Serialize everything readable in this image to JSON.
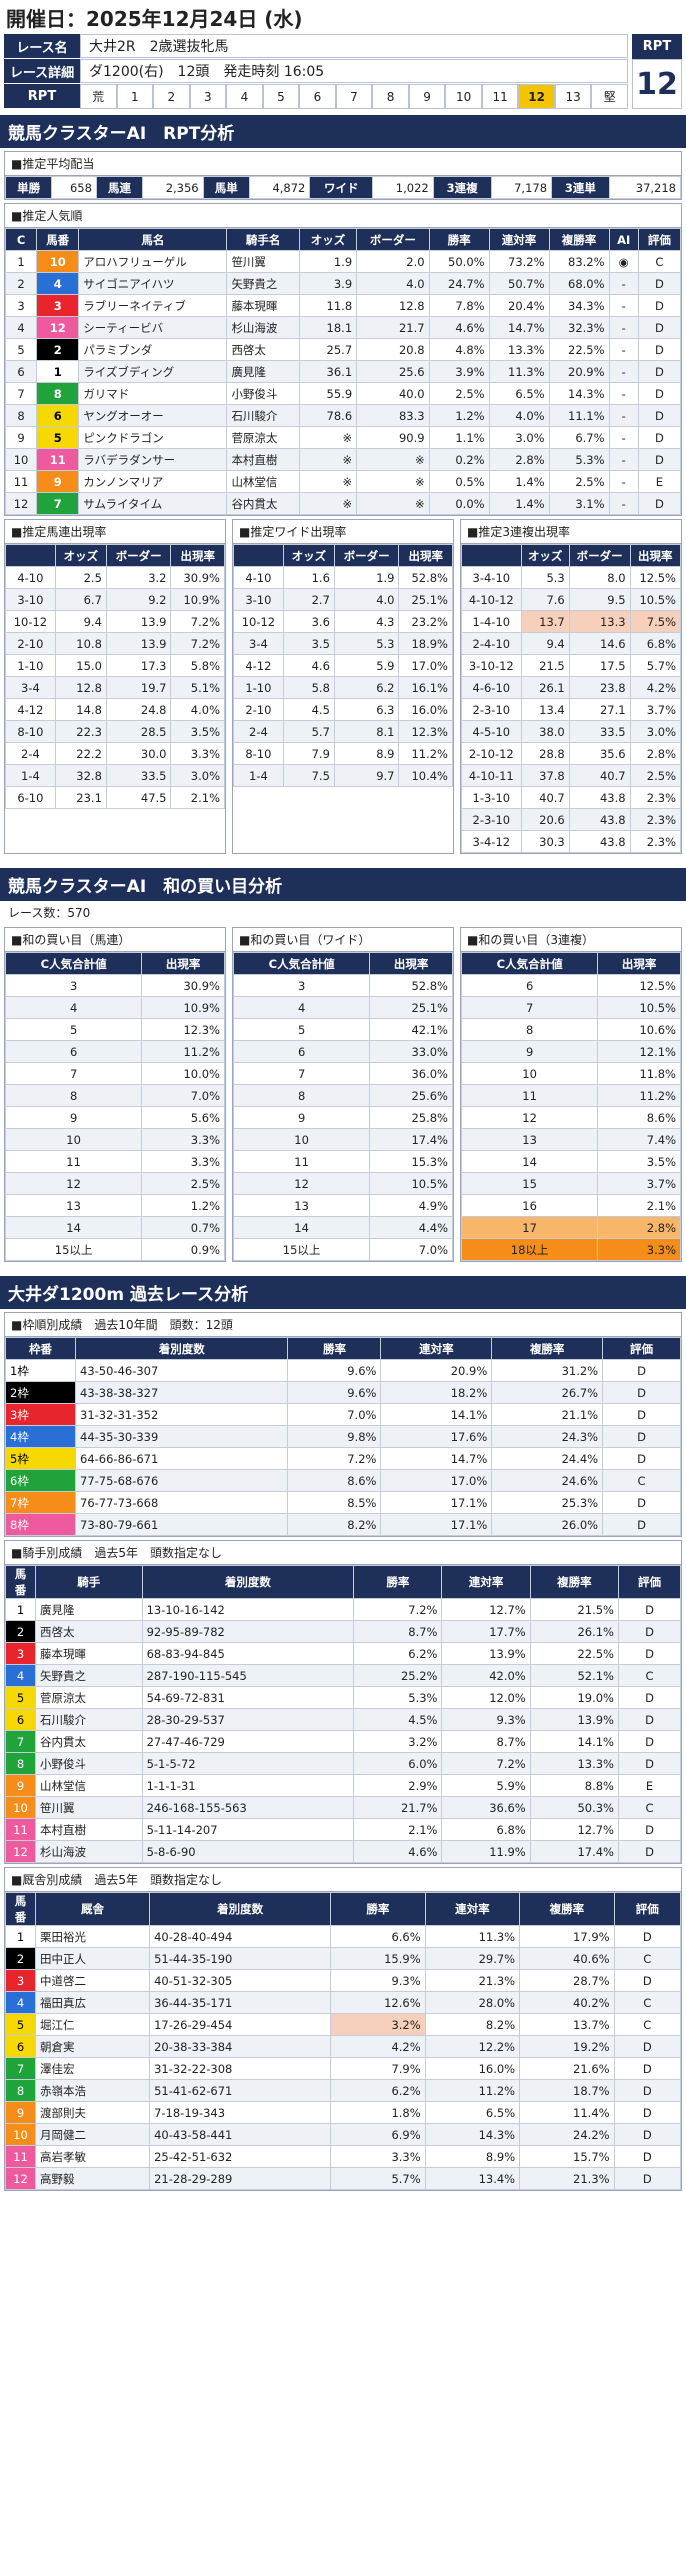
{
  "header": {
    "date_label": "開催日：",
    "date": "2025年12月24日 (水)"
  },
  "race": {
    "name_label": "レース名",
    "name": "大井2R　2歳選抜牝馬",
    "detail_label": "レース詳細",
    "detail": "ダ1200(右)　12頭　発走時刻 16:05",
    "rpt_label": "RPT",
    "rpt_head": "RPT",
    "rpt_value": "12",
    "rpt_scale": [
      "荒",
      "1",
      "2",
      "3",
      "4",
      "5",
      "6",
      "7",
      "8",
      "9",
      "10",
      "11",
      "12",
      "13",
      "堅"
    ],
    "rpt_selected": "12"
  },
  "sec1": {
    "title": "競馬クラスターAI　RPT分析"
  },
  "payout": {
    "title": "■推定平均配当",
    "items": [
      {
        "k": "単勝",
        "v": "658"
      },
      {
        "k": "馬連",
        "v": "2,356"
      },
      {
        "k": "馬単",
        "v": "4,872"
      },
      {
        "k": "ワイド",
        "v": "1,022"
      },
      {
        "k": "3連複",
        "v": "7,178"
      },
      {
        "k": "3連単",
        "v": "37,218"
      }
    ]
  },
  "pop": {
    "title": "■推定人気順",
    "headers": [
      "C",
      "馬番",
      "馬名",
      "騎手名",
      "オッズ",
      "ボーダー",
      "勝率",
      "連対率",
      "複勝率",
      "AI",
      "評価"
    ],
    "rows": [
      [
        "1",
        "10",
        "アロハフリューゲル",
        "笹川翼",
        "1.9",
        "2.0",
        "50.0%",
        "73.2%",
        "83.2%",
        "◉",
        "C"
      ],
      [
        "2",
        "4",
        "サイゴニアイハツ",
        "矢野貴之",
        "3.9",
        "4.0",
        "24.7%",
        "50.7%",
        "68.0%",
        "-",
        "D"
      ],
      [
        "3",
        "3",
        "ラブリーネイティブ",
        "藤本現暉",
        "11.8",
        "12.8",
        "7.8%",
        "20.4%",
        "34.3%",
        "-",
        "D"
      ],
      [
        "4",
        "12",
        "シーティービバ",
        "杉山海波",
        "18.1",
        "21.7",
        "4.6%",
        "14.7%",
        "32.3%",
        "-",
        "D"
      ],
      [
        "5",
        "2",
        "パラミブンダ",
        "西啓太",
        "25.7",
        "20.8",
        "4.8%",
        "13.3%",
        "22.5%",
        "-",
        "D"
      ],
      [
        "6",
        "1",
        "ライズブディング",
        "廣見隆",
        "36.1",
        "25.6",
        "3.9%",
        "11.3%",
        "20.9%",
        "-",
        "D"
      ],
      [
        "7",
        "8",
        "ガリマド",
        "小野俊斗",
        "55.9",
        "40.0",
        "2.5%",
        "6.5%",
        "14.3%",
        "-",
        "D"
      ],
      [
        "8",
        "6",
        "ヤングオーオー",
        "石川駿介",
        "78.6",
        "83.3",
        "1.2%",
        "4.0%",
        "11.1%",
        "-",
        "D"
      ],
      [
        "9",
        "5",
        "ピンクドラゴン",
        "菅原涼太",
        "※",
        "90.9",
        "1.1%",
        "3.0%",
        "6.7%",
        "-",
        "D"
      ],
      [
        "10",
        "11",
        "ラバデラダンサー",
        "本村直樹",
        "※",
        "※",
        "0.2%",
        "2.8%",
        "5.3%",
        "-",
        "D"
      ],
      [
        "11",
        "9",
        "カンノンマリア",
        "山林堂信",
        "※",
        "※",
        "0.5%",
        "1.4%",
        "2.5%",
        "-",
        "E"
      ],
      [
        "12",
        "7",
        "サムライタイム",
        "谷内貫太",
        "※",
        "※",
        "0.0%",
        "1.4%",
        "3.1%",
        "-",
        "D"
      ]
    ]
  },
  "umaren": {
    "title": "■推定馬連出現率",
    "headers": [
      "",
      "オッズ",
      "ボーダー",
      "出現率"
    ],
    "rows": [
      [
        "4-10",
        "2.5",
        "3.2",
        "30.9%"
      ],
      [
        "3-10",
        "6.7",
        "9.2",
        "10.9%"
      ],
      [
        "10-12",
        "9.4",
        "13.9",
        "7.2%"
      ],
      [
        "2-10",
        "10.8",
        "13.9",
        "7.2%"
      ],
      [
        "1-10",
        "15.0",
        "17.3",
        "5.8%"
      ],
      [
        "3-4",
        "12.8",
        "19.7",
        "5.1%"
      ],
      [
        "4-12",
        "14.8",
        "24.8",
        "4.0%"
      ],
      [
        "8-10",
        "22.3",
        "28.5",
        "3.5%"
      ],
      [
        "2-4",
        "22.2",
        "30.0",
        "3.3%"
      ],
      [
        "1-4",
        "32.8",
        "33.5",
        "3.0%"
      ],
      [
        "6-10",
        "23.1",
        "47.5",
        "2.1%"
      ]
    ]
  },
  "wide": {
    "title": "■推定ワイド出現率",
    "headers": [
      "",
      "オッズ",
      "ボーダー",
      "出現率"
    ],
    "rows": [
      [
        "4-10",
        "1.6",
        "1.9",
        "52.8%"
      ],
      [
        "3-10",
        "2.7",
        "4.0",
        "25.1%"
      ],
      [
        "10-12",
        "3.6",
        "4.3",
        "23.2%"
      ],
      [
        "3-4",
        "3.5",
        "5.3",
        "18.9%"
      ],
      [
        "4-12",
        "4.6",
        "5.9",
        "17.0%"
      ],
      [
        "1-10",
        "5.8",
        "6.2",
        "16.1%"
      ],
      [
        "2-10",
        "4.5",
        "6.3",
        "16.0%"
      ],
      [
        "2-4",
        "5.7",
        "8.1",
        "12.3%"
      ],
      [
        "8-10",
        "7.9",
        "8.9",
        "11.2%"
      ],
      [
        "1-4",
        "7.5",
        "9.7",
        "10.4%"
      ]
    ]
  },
  "sanren": {
    "title": "■推定3連複出現率",
    "headers": [
      "",
      "オッズ",
      "ボーダー",
      "出現率"
    ],
    "rows": [
      [
        "3-4-10",
        "5.3",
        "8.0",
        "12.5%"
      ],
      [
        "4-10-12",
        "7.6",
        "9.5",
        "10.5%"
      ],
      [
        "1-4-10",
        "13.7",
        "13.3",
        "7.5%"
      ],
      [
        "2-4-10",
        "9.4",
        "14.6",
        "6.8%"
      ],
      [
        "3-10-12",
        "21.5",
        "17.5",
        "5.7%"
      ],
      [
        "4-6-10",
        "26.1",
        "23.8",
        "4.2%"
      ],
      [
        "2-3-10",
        "13.4",
        "27.1",
        "3.7%"
      ],
      [
        "4-5-10",
        "38.0",
        "33.5",
        "3.0%"
      ],
      [
        "2-10-12",
        "28.8",
        "35.6",
        "2.8%"
      ],
      [
        "4-10-11",
        "37.8",
        "40.7",
        "2.5%"
      ],
      [
        "1-3-10",
        "40.7",
        "43.8",
        "2.3%"
      ],
      [
        "2-3-10",
        "20.6",
        "43.8",
        "2.3%"
      ],
      [
        "3-4-12",
        "30.3",
        "43.8",
        "2.3%"
      ]
    ],
    "marked": [
      2,
      5,
      7
    ]
  },
  "sec2": {
    "title": "競馬クラスターAI　和の買い目分析",
    "races": "レース数：570"
  },
  "wa1": {
    "title": "■和の買い目（馬連）",
    "headers": [
      "C人気合計値",
      "出現率"
    ],
    "rows": [
      [
        "3",
        "30.9%"
      ],
      [
        "4",
        "10.9%"
      ],
      [
        "5",
        "12.3%"
      ],
      [
        "6",
        "11.2%"
      ],
      [
        "7",
        "10.0%"
      ],
      [
        "8",
        "7.0%"
      ],
      [
        "9",
        "5.6%"
      ],
      [
        "10",
        "3.3%"
      ],
      [
        "11",
        "3.3%"
      ],
      [
        "12",
        "2.5%"
      ],
      [
        "13",
        "1.2%"
      ],
      [
        "14",
        "0.7%"
      ],
      [
        "15以上",
        "0.9%"
      ]
    ]
  },
  "wa2": {
    "title": "■和の買い目（ワイド）",
    "headers": [
      "C人気合計値",
      "出現率"
    ],
    "rows": [
      [
        "3",
        "52.8%"
      ],
      [
        "4",
        "25.1%"
      ],
      [
        "5",
        "42.1%"
      ],
      [
        "6",
        "33.0%"
      ],
      [
        "7",
        "36.0%"
      ],
      [
        "8",
        "25.6%"
      ],
      [
        "9",
        "25.8%"
      ],
      [
        "10",
        "17.4%"
      ],
      [
        "11",
        "15.3%"
      ],
      [
        "12",
        "10.5%"
      ],
      [
        "13",
        "4.9%"
      ],
      [
        "14",
        "4.4%"
      ],
      [
        "15以上",
        "7.0%"
      ]
    ]
  },
  "wa3": {
    "title": "■和の買い目（3連複）",
    "headers": [
      "C人気合計値",
      "出現率"
    ],
    "rows": [
      [
        "6",
        "12.5%"
      ],
      [
        "7",
        "10.5%"
      ],
      [
        "8",
        "10.6%"
      ],
      [
        "9",
        "12.1%"
      ],
      [
        "10",
        "11.8%"
      ],
      [
        "11",
        "11.2%"
      ],
      [
        "12",
        "8.6%"
      ],
      [
        "13",
        "7.4%"
      ],
      [
        "14",
        "3.5%"
      ],
      [
        "15",
        "3.7%"
      ],
      [
        "16",
        "2.1%"
      ],
      [
        "17",
        "2.8%"
      ],
      [
        "18以上",
        "3.3%"
      ]
    ]
  },
  "sec3": {
    "title": "大井ダ1200m 過去レース分析"
  },
  "waku": {
    "title": "■枠順別成績　過去10年間　頭数：12頭",
    "headers": [
      "枠番",
      "着別度数",
      "勝率",
      "連対率",
      "複勝率",
      "評価"
    ],
    "rows": [
      [
        "1枠",
        "43-50-46-307",
        "9.6%",
        "20.9%",
        "31.2%",
        "D"
      ],
      [
        "2枠",
        "43-38-38-327",
        "9.6%",
        "18.2%",
        "26.7%",
        "D"
      ],
      [
        "3枠",
        "31-32-31-352",
        "7.0%",
        "14.1%",
        "21.1%",
        "D"
      ],
      [
        "4枠",
        "44-35-30-339",
        "9.8%",
        "17.6%",
        "24.3%",
        "D"
      ],
      [
        "5枠",
        "64-66-86-671",
        "7.2%",
        "14.7%",
        "24.4%",
        "D"
      ],
      [
        "6枠",
        "77-75-68-676",
        "8.6%",
        "17.0%",
        "24.6%",
        "C"
      ],
      [
        "7枠",
        "76-77-73-668",
        "8.5%",
        "17.1%",
        "25.3%",
        "D"
      ],
      [
        "8枠",
        "73-80-79-661",
        "8.2%",
        "17.1%",
        "26.0%",
        "D"
      ]
    ]
  },
  "jockey": {
    "title": "■騎手別成績　過去5年　頭数指定なし",
    "headers": [
      "馬番",
      "騎手",
      "着別度数",
      "勝率",
      "連対率",
      "複勝率",
      "評価"
    ],
    "rows": [
      [
        "1",
        "廣見隆",
        "13-10-16-142",
        "7.2%",
        "12.7%",
        "21.5%",
        "D"
      ],
      [
        "2",
        "西啓太",
        "92-95-89-782",
        "8.7%",
        "17.7%",
        "26.1%",
        "D"
      ],
      [
        "3",
        "藤本現暉",
        "68-83-94-845",
        "6.2%",
        "13.9%",
        "22.5%",
        "D"
      ],
      [
        "4",
        "矢野貴之",
        "287-190-115-545",
        "25.2%",
        "42.0%",
        "52.1%",
        "C"
      ],
      [
        "5",
        "菅原涼太",
        "54-69-72-831",
        "5.3%",
        "12.0%",
        "19.0%",
        "D"
      ],
      [
        "6",
        "石川駿介",
        "28-30-29-537",
        "4.5%",
        "9.3%",
        "13.9%",
        "D"
      ],
      [
        "7",
        "谷内貫太",
        "27-47-46-729",
        "3.2%",
        "8.7%",
        "14.1%",
        "D"
      ],
      [
        "8",
        "小野俊斗",
        "5-1-5-72",
        "6.0%",
        "7.2%",
        "13.3%",
        "D"
      ],
      [
        "9",
        "山林堂信",
        "1-1-1-31",
        "2.9%",
        "5.9%",
        "8.8%",
        "E"
      ],
      [
        "10",
        "笹川翼",
        "246-168-155-563",
        "21.7%",
        "36.6%",
        "50.3%",
        "C"
      ],
      [
        "11",
        "本村直樹",
        "5-11-14-207",
        "2.1%",
        "6.8%",
        "12.7%",
        "D"
      ],
      [
        "12",
        "杉山海波",
        "5-8-6-90",
        "4.6%",
        "11.9%",
        "17.4%",
        "D"
      ]
    ]
  },
  "stable": {
    "title": "■厩舎別成績　過去5年　頭数指定なし",
    "headers": [
      "馬番",
      "厩舎",
      "着別度数",
      "勝率",
      "連対率",
      "複勝率",
      "評価"
    ],
    "rows": [
      [
        "1",
        "栗田裕光",
        "40-28-40-494",
        "6.6%",
        "11.3%",
        "17.9%",
        "D"
      ],
      [
        "2",
        "田中正人",
        "51-44-35-190",
        "15.9%",
        "29.7%",
        "40.6%",
        "C"
      ],
      [
        "3",
        "中道啓二",
        "40-51-32-305",
        "9.3%",
        "21.3%",
        "28.7%",
        "D"
      ],
      [
        "4",
        "福田真広",
        "36-44-35-171",
        "12.6%",
        "28.0%",
        "40.2%",
        "C"
      ],
      [
        "5",
        "堀江仁",
        "17-26-29-454",
        "3.2%",
        "8.2%",
        "13.7%",
        "C"
      ],
      [
        "6",
        "朝倉実",
        "20-38-33-384",
        "4.2%",
        "12.2%",
        "19.2%",
        "D"
      ],
      [
        "7",
        "澤佳宏",
        "31-32-22-308",
        "7.9%",
        "16.0%",
        "21.6%",
        "D"
      ],
      [
        "8",
        "赤嶺本浩",
        "51-41-62-671",
        "6.2%",
        "11.2%",
        "18.7%",
        "D"
      ],
      [
        "9",
        "渡部則夫",
        "7-18-19-343",
        "1.8%",
        "6.5%",
        "11.4%",
        "D"
      ],
      [
        "10",
        "月岡健二",
        "40-43-58-441",
        "6.9%",
        "14.3%",
        "24.2%",
        "D"
      ],
      [
        "11",
        "高岩孝敏",
        "25-42-51-632",
        "3.3%",
        "8.9%",
        "15.7%",
        "D"
      ],
      [
        "12",
        "高野毅",
        "21-28-29-289",
        "5.7%",
        "13.4%",
        "21.3%",
        "D"
      ]
    ]
  },
  "colors": {
    "navy": "#1e2f5a",
    "gold": "#f5c400",
    "orange": "#f58d18"
  }
}
